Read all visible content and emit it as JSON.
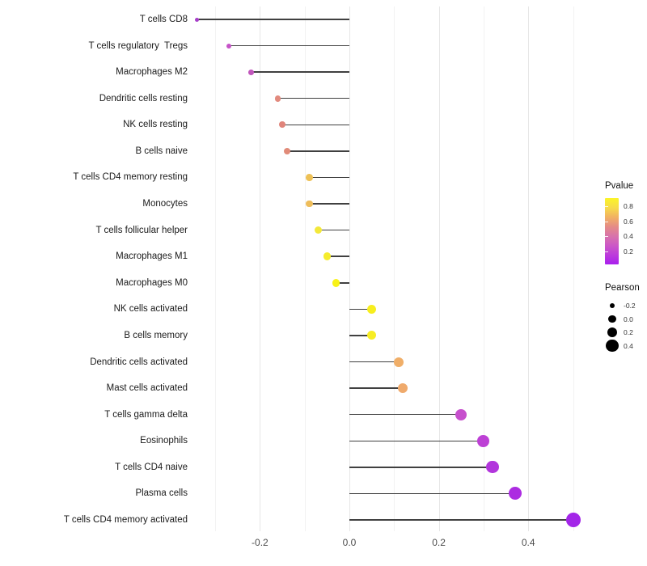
{
  "chart_data": {
    "type": "lollipop",
    "orientation": "horizontal",
    "title": "",
    "xlabel": "",
    "ylabel": "",
    "baseline": 0,
    "xlim": [
      -0.36,
      0.52
    ],
    "x_ticks": [
      {
        "value": -0.2,
        "label": "-0.2"
      },
      {
        "value": 0.0,
        "label": "0.0"
      },
      {
        "value": 0.2,
        "label": "0.2"
      },
      {
        "value": 0.4,
        "label": "0.4"
      }
    ],
    "grid": {
      "vertical_lines_step": 0.1,
      "range": [
        -0.3,
        0.5
      ],
      "major_at": [
        -0.2,
        0.0,
        0.2,
        0.4
      ]
    },
    "size_domain": [
      -0.34,
      0.5
    ],
    "points": [
      {
        "label": "T cells CD8",
        "pearson": -0.34,
        "color": "#a73ec9"
      },
      {
        "label": "T cells regulatory  Tregs",
        "pearson": -0.27,
        "color": "#c653c8"
      },
      {
        "label": "Macrophages M2",
        "pearson": -0.22,
        "color": "#c156bc"
      },
      {
        "label": "Dendritic cells resting",
        "pearson": -0.16,
        "color": "#e28a7e"
      },
      {
        "label": "NK cells resting",
        "pearson": -0.15,
        "color": "#e0857b"
      },
      {
        "label": "B cells naive",
        "pearson": -0.14,
        "color": "#e18b79"
      },
      {
        "label": "T cells CD4 memory resting",
        "pearson": -0.09,
        "color": "#eec156"
      },
      {
        "label": "Monocytes",
        "pearson": -0.09,
        "color": "#eebd5b"
      },
      {
        "label": "T cells follicular helper",
        "pearson": -0.07,
        "color": "#f3e83a"
      },
      {
        "label": "Macrophages M1",
        "pearson": -0.05,
        "color": "#f5ec2d"
      },
      {
        "label": "Macrophages M0",
        "pearson": -0.03,
        "color": "#f8f216"
      },
      {
        "label": "NK cells activated",
        "pearson": 0.05,
        "color": "#f7ee1e"
      },
      {
        "label": "B cells memory",
        "pearson": 0.05,
        "color": "#f7ed24"
      },
      {
        "label": "Dendritic cells activated",
        "pearson": 0.11,
        "color": "#f0ae68"
      },
      {
        "label": "Mast cells activated",
        "pearson": 0.12,
        "color": "#efaa6c"
      },
      {
        "label": "T cells gamma delta",
        "pearson": 0.25,
        "color": "#c750cd"
      },
      {
        "label": "Eosinophils",
        "pearson": 0.3,
        "color": "#bd40d5"
      },
      {
        "label": "T cells CD4 naive",
        "pearson": 0.32,
        "color": "#b236dc"
      },
      {
        "label": "Plasma cells",
        "pearson": 0.37,
        "color": "#ac2ce1"
      },
      {
        "label": "T cells CD4 memory activated",
        "pearson": 0.5,
        "color": "#a326e8"
      }
    ],
    "legend_pvalue": {
      "title": "Pvalue",
      "ticks": [
        {
          "label": "0.8"
        },
        {
          "label": "0.6"
        },
        {
          "label": "0.4"
        },
        {
          "label": "0.2"
        }
      ],
      "gradient_top_to_bottom": [
        "#fbf428",
        "#f7dc49",
        "#f1b163",
        "#e58c86",
        "#d873ab",
        "#cc58c6",
        "#bc3bdb",
        "#a91fee"
      ]
    },
    "legend_pearson": {
      "title": "Pearson",
      "items": [
        {
          "label": "-0.2",
          "value": -0.2
        },
        {
          "label": "0.0",
          "value": 0.0
        },
        {
          "label": "0.2",
          "value": 0.2
        },
        {
          "label": "0.4",
          "value": 0.4
        }
      ]
    },
    "colors": {
      "background": "#ffffff",
      "grid_major": "#e6e6e6",
      "grid_minor": "#f2f2f2",
      "stick": "#404040",
      "axis_text": "#4d4d4d",
      "label_text": "#1a1a1a",
      "legend_dot": "#000000"
    }
  }
}
